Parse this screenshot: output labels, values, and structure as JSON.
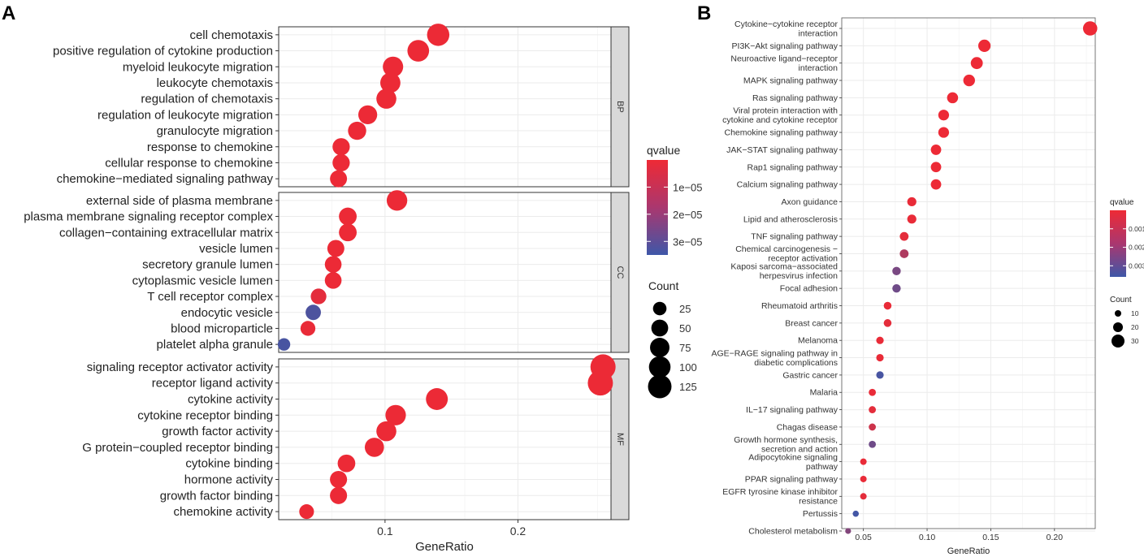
{
  "panel_labels": {
    "a": "A",
    "b": "B"
  },
  "colors": {
    "high": "#ee2a35",
    "low": "#3e57a8",
    "grid": "#ebebeb",
    "strip": "#d9d9d9"
  },
  "chart_data": [
    {
      "type": "scatter",
      "panel": "A",
      "xlabel": "GeneRatio",
      "xlim": [
        0.02,
        0.27
      ],
      "xticks": [
        0.1,
        0.2
      ],
      "xtick_labels": [
        "0.1",
        "0.2"
      ],
      "facets": [
        {
          "name": "BP",
          "terms": [
            {
              "label": "cell chemotaxis",
              "x": 0.14,
              "count": 95,
              "q": 3e-07
            },
            {
              "label": "positive regulation of cytokine production",
              "x": 0.125,
              "count": 88,
              "q": 3e-07
            },
            {
              "label": "myeloid leukocyte migration",
              "x": 0.106,
              "count": 74,
              "q": 3e-07
            },
            {
              "label": "leukocyte chemotaxis",
              "x": 0.104,
              "count": 72,
              "q": 3e-07
            },
            {
              "label": "regulation of chemotaxis",
              "x": 0.101,
              "count": 70,
              "q": 3e-07
            },
            {
              "label": "regulation of leukocyte migration",
              "x": 0.087,
              "count": 60,
              "q": 3e-07
            },
            {
              "label": "granulocyte migration",
              "x": 0.079,
              "count": 54,
              "q": 3e-07
            },
            {
              "label": "response to chemokine",
              "x": 0.067,
              "count": 46,
              "q": 3e-07
            },
            {
              "label": "cellular response to chemokine",
              "x": 0.067,
              "count": 46,
              "q": 3e-07
            },
            {
              "label": "chemokine−mediated signaling pathway",
              "x": 0.065,
              "count": 44,
              "q": 3e-07
            }
          ]
        },
        {
          "name": "CC",
          "terms": [
            {
              "label": "external side of plasma membrane",
              "x": 0.109,
              "count": 76,
              "q": 3e-07
            },
            {
              "label": "plasma membrane signaling receptor complex",
              "x": 0.072,
              "count": 50,
              "q": 3e-07
            },
            {
              "label": "collagen−containing extracellular matrix",
              "x": 0.072,
              "count": 50,
              "q": 3e-07
            },
            {
              "label": "vesicle lumen",
              "x": 0.063,
              "count": 44,
              "q": 3e-07
            },
            {
              "label": "secretory granule lumen",
              "x": 0.061,
              "count": 42,
              "q": 3e-07
            },
            {
              "label": "cytoplasmic vesicle lumen",
              "x": 0.061,
              "count": 42,
              "q": 3e-07
            },
            {
              "label": "T cell receptor complex",
              "x": 0.05,
              "count": 34,
              "q": 2e-06
            },
            {
              "label": "endocytic vesicle",
              "x": 0.046,
              "count": 32,
              "q": 3.2e-05
            },
            {
              "label": "blood microparticle",
              "x": 0.042,
              "count": 29,
              "q": 1e-06
            },
            {
              "label": "platelet alpha granule",
              "x": 0.024,
              "count": 16,
              "q": 3.3e-05
            }
          ]
        },
        {
          "name": "MF",
          "terms": [
            {
              "label": "signaling receptor activator activity",
              "x": 0.264,
              "count": 130,
              "q": 3e-07
            },
            {
              "label": "receptor ligand activity",
              "x": 0.262,
              "count": 130,
              "q": 3e-07
            },
            {
              "label": "cytokine activity",
              "x": 0.139,
              "count": 90,
              "q": 3e-07
            },
            {
              "label": "cytokine receptor binding",
              "x": 0.108,
              "count": 75,
              "q": 3e-07
            },
            {
              "label": "growth factor activity",
              "x": 0.101,
              "count": 70,
              "q": 3e-07
            },
            {
              "label": "G protein−coupled receptor binding",
              "x": 0.092,
              "count": 63,
              "q": 3e-07
            },
            {
              "label": "cytokine binding",
              "x": 0.071,
              "count": 49,
              "q": 3e-07
            },
            {
              "label": "hormone activity",
              "x": 0.065,
              "count": 45,
              "q": 3e-07
            },
            {
              "label": "growth factor binding",
              "x": 0.065,
              "count": 45,
              "q": 3e-07
            },
            {
              "label": "chemokine activity",
              "x": 0.041,
              "count": 28,
              "q": 3e-07
            }
          ]
        }
      ],
      "legend": {
        "color_title": "qvalue",
        "color_ticks": [
          "1e−05",
          "2e−05",
          "3e−05"
        ],
        "color_tick_values": [
          1e-05,
          2e-05,
          3e-05
        ],
        "color_range": [
          0,
          3.5e-05
        ],
        "size_title": "Count",
        "size_labels": [
          "25",
          "50",
          "75",
          "100",
          "125"
        ],
        "size_values": [
          25,
          50,
          75,
          100,
          125
        ],
        "placement": "right"
      }
    },
    {
      "type": "scatter",
      "panel": "B",
      "xlabel": "GeneRatio",
      "xlim": [
        0.033,
        0.232
      ],
      "xticks": [
        0.05,
        0.1,
        0.15,
        0.2
      ],
      "xtick_labels": [
        "0.05",
        "0.10",
        "0.15",
        "0.20"
      ],
      "terms": [
        {
          "label": "Cytokine−cytokine receptor interaction",
          "x": 0.228,
          "count": 34,
          "q": 2e-05
        },
        {
          "label": "PI3K−Akt signaling pathway",
          "x": 0.145,
          "count": 28,
          "q": 2e-05
        },
        {
          "label": "Neuroactive ligand−receptor interaction",
          "x": 0.139,
          "count": 27,
          "q": 2e-05
        },
        {
          "label": "MAPK signaling pathway",
          "x": 0.133,
          "count": 26,
          "q": 2e-05
        },
        {
          "label": "Ras signaling pathway",
          "x": 0.12,
          "count": 24,
          "q": 2e-05
        },
        {
          "label": "Viral protein interaction with cytokine and cytokine receptor",
          "x": 0.113,
          "count": 23,
          "q": 2e-05
        },
        {
          "label": "Chemokine signaling pathway",
          "x": 0.113,
          "count": 23,
          "q": 2e-05
        },
        {
          "label": "JAK−STAT signaling pathway",
          "x": 0.107,
          "count": 22,
          "q": 2e-05
        },
        {
          "label": "Rap1 signaling pathway",
          "x": 0.107,
          "count": 22,
          "q": 2e-05
        },
        {
          "label": "Calcium signaling pathway",
          "x": 0.107,
          "count": 22,
          "q": 2e-05
        },
        {
          "label": "Axon guidance",
          "x": 0.088,
          "count": 18,
          "q": 0.0001
        },
        {
          "label": "Lipid and atherosclerosis",
          "x": 0.088,
          "count": 18,
          "q": 0.0001
        },
        {
          "label": "TNF signaling pathway",
          "x": 0.082,
          "count": 17,
          "q": 0.0002
        },
        {
          "label": "Chemical carcinogenesis − receptor activation",
          "x": 0.082,
          "count": 17,
          "q": 0.0013
        },
        {
          "label": "Kaposi sarcoma−associated herpesvirus infection",
          "x": 0.076,
          "count": 16,
          "q": 0.0024
        },
        {
          "label": "Focal adhesion",
          "x": 0.076,
          "count": 16,
          "q": 0.0026
        },
        {
          "label": "Rheumatoid arthritis",
          "x": 0.069,
          "count": 14,
          "q": 0.0001
        },
        {
          "label": "Breast cancer",
          "x": 0.069,
          "count": 14,
          "q": 0.0002
        },
        {
          "label": "Melanoma",
          "x": 0.063,
          "count": 13,
          "q": 0.0001
        },
        {
          "label": "AGE−RAGE signaling pathway in diabetic complications",
          "x": 0.063,
          "count": 13,
          "q": 0.0001
        },
        {
          "label": "Gastric cancer",
          "x": 0.063,
          "count": 13,
          "q": 0.0034
        },
        {
          "label": "Malaria",
          "x": 0.057,
          "count": 12,
          "q": 0.0001
        },
        {
          "label": "IL−17 signaling pathway",
          "x": 0.057,
          "count": 12,
          "q": 0.0002
        },
        {
          "label": "Chagas disease",
          "x": 0.057,
          "count": 12,
          "q": 0.0007
        },
        {
          "label": "Growth hormone synthesis, secretion and action",
          "x": 0.057,
          "count": 12,
          "q": 0.0026
        },
        {
          "label": "Adipocytokine signaling pathway",
          "x": 0.05,
          "count": 10,
          "q": 0.0001
        },
        {
          "label": "PPAR signaling pathway",
          "x": 0.05,
          "count": 10,
          "q": 0.0001
        },
        {
          "label": "EGFR tyrosine kinase inhibitor resistance",
          "x": 0.05,
          "count": 10,
          "q": 0.0002
        },
        {
          "label": "Pertussis",
          "x": 0.044,
          "count": 9,
          "q": 0.0035
        },
        {
          "label": "Cholesterol metabolism",
          "x": 0.038,
          "count": 8,
          "q": 0.0022
        }
      ],
      "legend": {
        "color_title": "qvalue",
        "color_ticks": [
          "0.001",
          "0.002",
          "0.003"
        ],
        "color_tick_values": [
          0.001,
          0.002,
          0.003
        ],
        "color_range": [
          0,
          0.0036
        ],
        "size_title": "Count",
        "size_labels": [
          "10",
          "20",
          "30"
        ],
        "size_values": [
          10,
          20,
          30
        ],
        "placement": "right"
      }
    }
  ]
}
